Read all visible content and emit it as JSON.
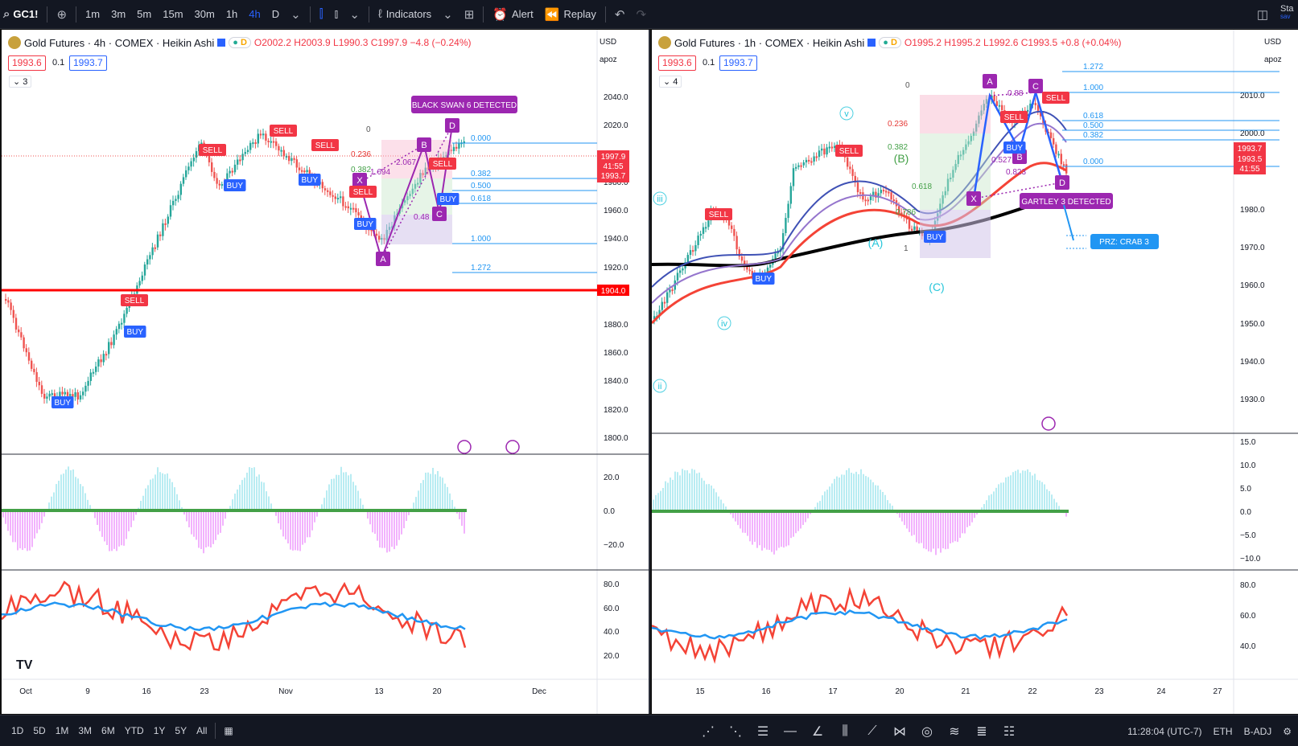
{
  "toolbar": {
    "symbol": "GC1!",
    "add_icon": "plus-circle-icon",
    "timeframes": [
      "1m",
      "3m",
      "5m",
      "15m",
      "30m",
      "1h",
      "4h",
      "D"
    ],
    "active_timeframe": "4h",
    "indicators_label": "Indicators",
    "alert_label": "Alert",
    "replay_label": "Replay",
    "right_clip": "Sta",
    "right_clip_sub": "sav"
  },
  "left": {
    "title": "Gold Futures · 4h · COMEX · Heikin Ashi",
    "badge_d": "D",
    "o": "O2002.2",
    "h": "H2003.9",
    "l": "L1990.3",
    "c": "C1997.9",
    "chg": "−4.8 (−0.24%)",
    "bid": "1993.6",
    "spread": "0.1",
    "ask": "1993.7",
    "collapse": "3",
    "currency": "USD",
    "scale_mode": "apoz",
    "price_ticks": [
      "2040.0",
      "2020.0",
      "2000.0",
      "1980.0",
      "1960.0",
      "1940.0",
      "1920.0",
      "1880.0",
      "1860.0",
      "1840.0",
      "1820.0",
      "1800.0"
    ],
    "price_tag_main": "1997.9",
    "price_tag_time": "41:55",
    "price_tag_ask": "1993.7",
    "price_tag_line": "1904.0",
    "osc_ticks": [
      "20.0",
      "0.0",
      "−20.0"
    ],
    "rsi_ticks": [
      "80.0",
      "60.0",
      "40.0",
      "20.0"
    ],
    "x_ticks": [
      "Oct",
      "9",
      "16",
      "23",
      "Nov",
      "13",
      "20",
      "Dec"
    ],
    "pattern_label": "BLACK SWAN 6 DETECTED",
    "fib_labels": [
      "0.000",
      "0.382",
      "0.500",
      "0.618",
      "1.000",
      "1.272"
    ],
    "fib_small": [
      "0",
      "0.236",
      "0.382"
    ],
    "points": [
      "X",
      "A",
      "B",
      "C",
      "D"
    ],
    "ratios": [
      "2.067",
      "1.694",
      "0.48"
    ],
    "signals": [
      "SELL",
      "SELL",
      "SELL",
      "SELL",
      "SELL",
      "SELL",
      "BUY",
      "BUY",
      "BUY",
      "BUY",
      "BUY",
      "BUY"
    ]
  },
  "right": {
    "title": "Gold Futures · 1h · COMEX · Heikin Ashi",
    "badge_d": "D",
    "o": "O1995.2",
    "h": "H1995.2",
    "l": "L1992.6",
    "c": "C1993.5",
    "chg": "+0.8 (+0.04%)",
    "bid": "1993.6",
    "spread": "0.1",
    "ask": "1993.7",
    "collapse": "4",
    "currency": "USD",
    "scale_mode": "apoz",
    "price_ticks": [
      "2010.0",
      "2000.0",
      "1980.0",
      "1970.0",
      "1960.0",
      "1950.0",
      "1940.0",
      "1930.0"
    ],
    "price_tag_main": "1993.7",
    "price_tag_mid": "1993.5",
    "price_tag_time": "41:55",
    "osc_ticks": [
      "15.0",
      "10.0",
      "5.0",
      "0.0",
      "−5.0",
      "−10.0"
    ],
    "rsi_ticks": [
      "80.0",
      "60.0",
      "40.0"
    ],
    "x_ticks": [
      "15",
      "16",
      "17",
      "20",
      "21",
      "22",
      "23",
      "24",
      "27"
    ],
    "pattern_label": "GARTLEY 3 DETECTED",
    "prz_label": "PRZ: CRAB 3",
    "fib_labels": [
      "1.272",
      "1.000",
      "0.618",
      "0.500",
      "0.382",
      "0.000"
    ],
    "fib_small": [
      "0",
      "0.236",
      "0.382",
      "0.618",
      "0.786",
      "1"
    ],
    "points": [
      "A",
      "C",
      "B",
      "X",
      "D"
    ],
    "ratios": [
      "0.88",
      "0.527",
      "0.823"
    ],
    "wave_labels": [
      "v",
      "iii",
      "iv",
      "ii",
      "(B)",
      "(A)",
      "(C)"
    ],
    "signals": [
      "SELL",
      "SELL",
      "SELL",
      "SELL",
      "BUY",
      "BUY",
      "BUY"
    ]
  },
  "bottom": {
    "ranges": [
      "1D",
      "5D",
      "1M",
      "3M",
      "6M",
      "YTD",
      "1Y",
      "5Y",
      "All"
    ],
    "time": "11:28:04 (UTC-7)",
    "session": "ETH",
    "adj": "B-ADJ"
  },
  "colors": {
    "up": "#26a69a",
    "down": "#ef5350",
    "accent": "#2962ff",
    "pattern": "#9c27b0",
    "level": "#ff0000"
  }
}
